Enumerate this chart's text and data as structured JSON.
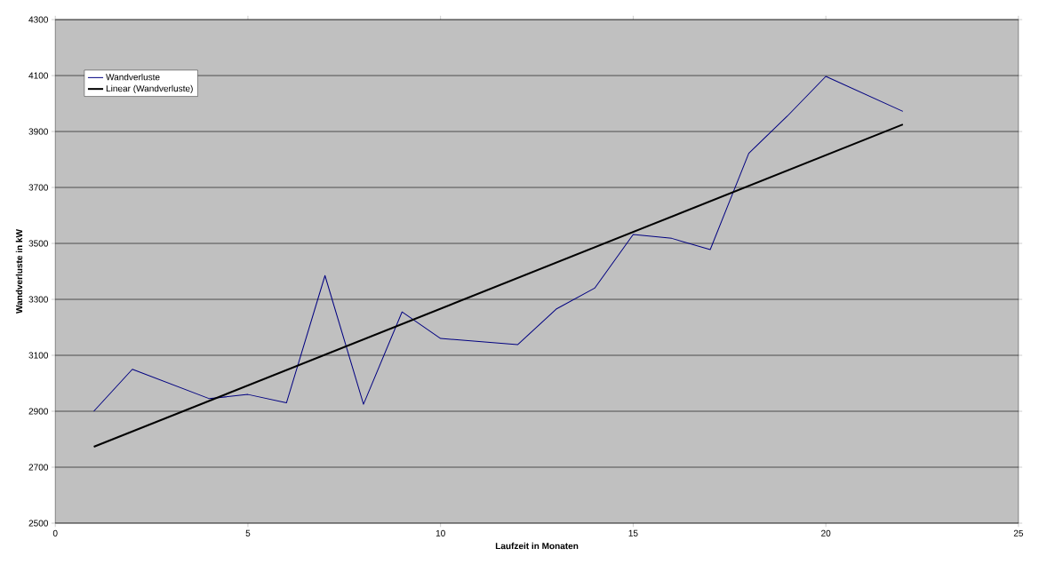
{
  "chart_data": {
    "type": "line",
    "xlabel": "Laufzeit in Monaten",
    "ylabel": "Wandverluste in kW",
    "xlim": [
      0,
      25
    ],
    "xticks": [
      0,
      5,
      10,
      15,
      20,
      25
    ],
    "ylim": [
      2500,
      4300
    ],
    "yticks": [
      2500,
      2700,
      2900,
      3100,
      3300,
      3500,
      3700,
      3900,
      4100,
      4300
    ],
    "grid": "y",
    "legend": "top left",
    "marker": "none",
    "series": [
      {
        "name": "Wandverluste",
        "color": "#000080",
        "x": [
          1,
          2,
          4,
          5,
          6,
          7,
          8,
          9,
          10,
          12,
          13,
          14,
          15,
          16,
          17,
          18,
          19,
          20,
          22
        ],
        "values": [
          2900,
          3050,
          2945,
          2960,
          2930,
          3385,
          2925,
          3255,
          3160,
          3138,
          3265,
          3340,
          3532,
          3518,
          3478,
          3822,
          3955,
          4097,
          3972
        ]
      },
      {
        "name": "Linear (Wandverluste)",
        "color": "#000000",
        "x": [
          1,
          22
        ],
        "values": [
          2773,
          3925
        ]
      }
    ]
  }
}
